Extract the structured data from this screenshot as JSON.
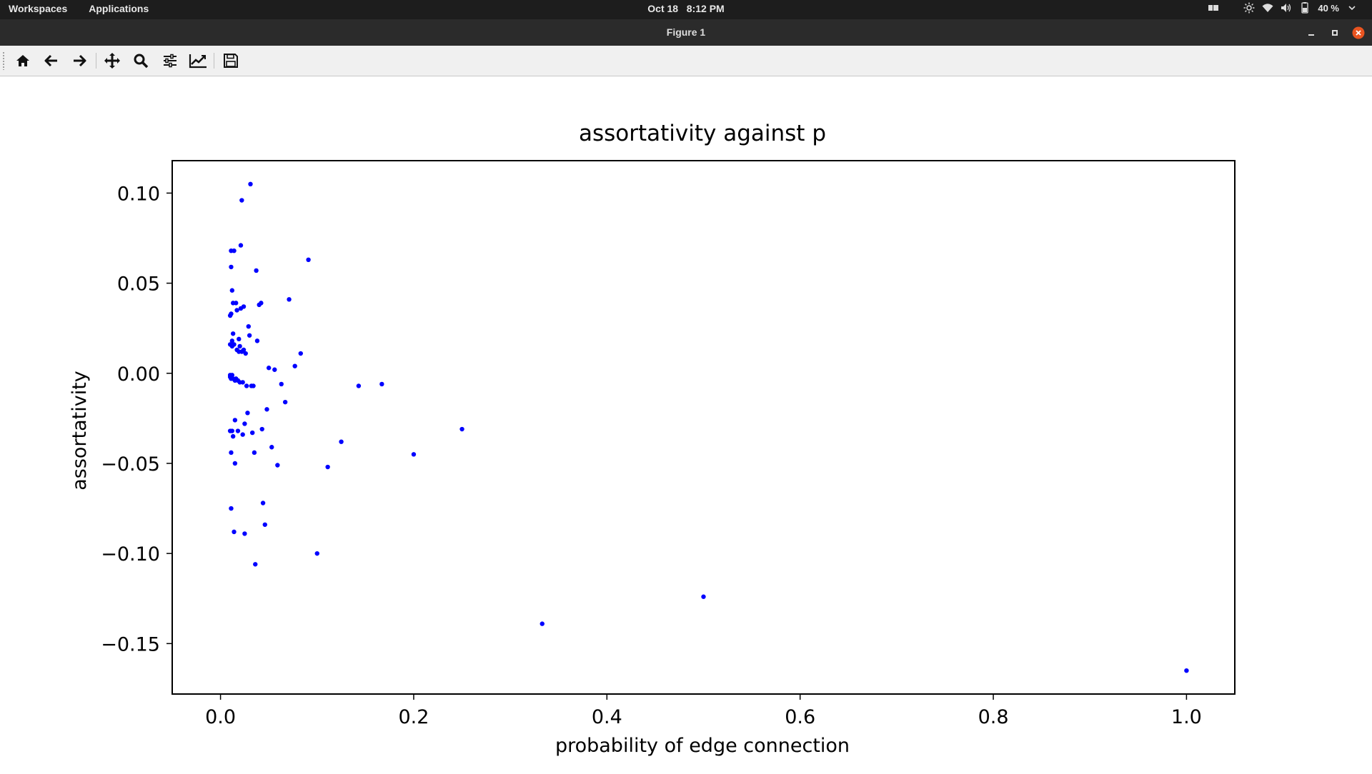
{
  "topbar": {
    "workspaces": "Workspaces",
    "applications": "Applications",
    "date": "Oct 18",
    "time": "8:12 PM",
    "battery": "40 %"
  },
  "window": {
    "title": "Figure 1"
  },
  "toolbar": {
    "buttons": [
      "home-icon",
      "back-arrow-icon",
      "forward-arrow-icon",
      "pan-icon",
      "zoom-icon",
      "configure-subplots-icon",
      "edit-axis-icon",
      "save-icon"
    ]
  },
  "colors": {
    "marker": "#0000ff",
    "close_button": "#e95420",
    "topbar": "#1d1d1d"
  },
  "chart_data": {
    "type": "scatter",
    "title": "assortativity against p",
    "xlabel": "probability of edge connection",
    "ylabel": "assortativity",
    "xlim": [
      -0.05,
      1.05
    ],
    "ylim": [
      -0.178,
      0.118
    ],
    "xticks": [
      0.0,
      0.2,
      0.4,
      0.6,
      0.8,
      1.0
    ],
    "xtick_labels": [
      "0.0",
      "0.2",
      "0.4",
      "0.6",
      "0.8",
      "1.0"
    ],
    "yticks": [
      0.1,
      0.05,
      0.0,
      -0.05,
      -0.1,
      -0.15
    ],
    "ytick_labels": [
      "0.10",
      "0.05",
      "0.00",
      "−0.05",
      "−0.10",
      "−0.15"
    ],
    "grid": false,
    "points": [
      [
        1.0,
        -0.165
      ],
      [
        0.5,
        -0.124
      ],
      [
        0.333,
        -0.139
      ],
      [
        0.25,
        -0.031
      ],
      [
        0.2,
        -0.045
      ],
      [
        0.167,
        -0.006
      ],
      [
        0.143,
        -0.007
      ],
      [
        0.125,
        -0.038
      ],
      [
        0.111,
        -0.052
      ],
      [
        0.1,
        -0.1
      ],
      [
        0.091,
        0.063
      ],
      [
        0.083,
        0.011
      ],
      [
        0.077,
        0.004
      ],
      [
        0.071,
        0.041
      ],
      [
        0.067,
        -0.016
      ],
      [
        0.063,
        -0.006
      ],
      [
        0.059,
        -0.051
      ],
      [
        0.056,
        0.002
      ],
      [
        0.053,
        -0.041
      ],
      [
        0.05,
        0.003
      ],
      [
        0.048,
        -0.02
      ],
      [
        0.046,
        -0.084
      ],
      [
        0.044,
        -0.072
      ],
      [
        0.043,
        -0.031
      ],
      [
        0.042,
        0.039
      ],
      [
        0.04,
        0.038
      ],
      [
        0.038,
        0.018
      ],
      [
        0.037,
        0.057
      ],
      [
        0.036,
        -0.106
      ],
      [
        0.035,
        -0.044
      ],
      [
        0.034,
        -0.007
      ],
      [
        0.033,
        -0.033
      ],
      [
        0.032,
        -0.007
      ],
      [
        0.031,
        0.105
      ],
      [
        0.03,
        0.021
      ],
      [
        0.029,
        0.026
      ],
      [
        0.028,
        -0.022
      ],
      [
        0.027,
        -0.007
      ],
      [
        0.026,
        0.011
      ],
      [
        0.025,
        -0.089
      ],
      [
        0.025,
        -0.028
      ],
      [
        0.024,
        0.013
      ],
      [
        0.024,
        0.037
      ],
      [
        0.023,
        -0.034
      ],
      [
        0.023,
        -0.005
      ],
      [
        0.022,
        0.096
      ],
      [
        0.022,
        0.012
      ],
      [
        0.021,
        0.071
      ],
      [
        0.021,
        0.036
      ],
      [
        0.02,
        0.015
      ],
      [
        0.02,
        -0.005
      ],
      [
        0.019,
        0.019
      ],
      [
        0.019,
        0.012
      ],
      [
        0.018,
        -0.004
      ],
      [
        0.018,
        -0.032
      ],
      [
        0.017,
        0.035
      ],
      [
        0.017,
        0.013
      ],
      [
        0.016,
        -0.003
      ],
      [
        0.016,
        0.039
      ],
      [
        0.015,
        -0.05
      ],
      [
        0.015,
        -0.026
      ],
      [
        0.015,
        -0.004
      ],
      [
        0.014,
        0.016
      ],
      [
        0.014,
        -0.088
      ],
      [
        0.014,
        0.068
      ],
      [
        0.013,
        -0.003
      ],
      [
        0.013,
        0.039
      ],
      [
        0.013,
        0.022
      ],
      [
        0.013,
        -0.035
      ],
      [
        0.012,
        0.018
      ],
      [
        0.012,
        0.046
      ],
      [
        0.012,
        -0.032
      ],
      [
        0.012,
        0.015
      ],
      [
        0.012,
        -0.001
      ],
      [
        0.011,
        0.068
      ],
      [
        0.011,
        -0.075
      ],
      [
        0.011,
        0.033
      ],
      [
        0.011,
        -0.044
      ],
      [
        0.011,
        -0.003
      ],
      [
        0.011,
        0.059
      ],
      [
        0.01,
        -0.002
      ],
      [
        0.01,
        0.032
      ],
      [
        0.01,
        -0.032
      ],
      [
        0.01,
        0.016
      ],
      [
        0.01,
        -0.001
      ]
    ]
  }
}
